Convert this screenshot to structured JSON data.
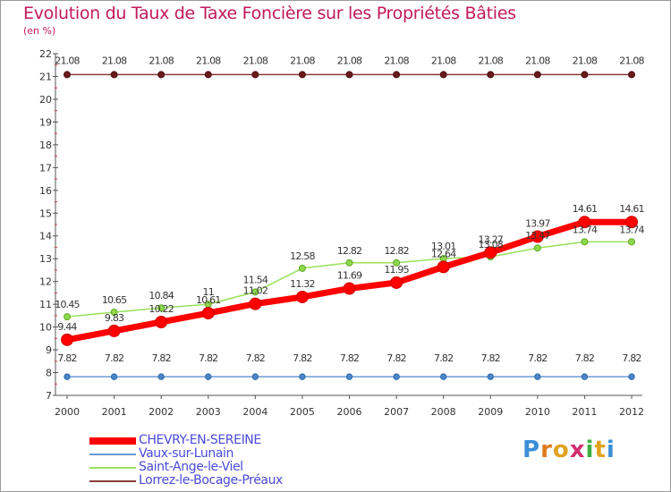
{
  "title": "Evolution du Taux de Taxe Foncière sur les Propriétés Bâties",
  "subtitle": "(en %)",
  "logo_text": "Proxiti",
  "chart_data": {
    "type": "line",
    "title": "Evolution du Taux de Taxe Foncière sur les Propriétés Bâties",
    "ylabel": "(en %)",
    "xlabel": "",
    "ylim": [
      7,
      22
    ],
    "yticks": [
      7,
      8,
      9,
      10,
      11,
      12,
      13,
      14,
      15,
      16,
      17,
      18,
      19,
      20,
      21,
      22
    ],
    "grid": false,
    "legend_position": "bottom-left",
    "categories": [
      "2000",
      "2001",
      "2002",
      "2003",
      "2004",
      "2005",
      "2006",
      "2007",
      "2008",
      "2009",
      "2010",
      "2011",
      "2012"
    ],
    "series": [
      {
        "name": "CHEVRY-EN-SEREINE",
        "color": "#ff0000",
        "values": [
          9.44,
          9.83,
          10.22,
          10.61,
          11.02,
          11.32,
          11.69,
          11.95,
          12.64,
          13.27,
          13.97,
          14.61,
          14.61
        ],
        "labels": [
          "9.44",
          "9.83",
          "10.22",
          "10.61",
          "11.02",
          "11.32",
          "11.69",
          "11.95",
          "12.64",
          "13.27",
          "13.97",
          "14.61",
          "14.61"
        ]
      },
      {
        "name": "Vaux-sur-Lunain",
        "color": "#6b9bd2",
        "values": [
          7.82,
          7.82,
          7.82,
          7.82,
          7.82,
          7.82,
          7.82,
          7.82,
          7.82,
          7.82,
          7.82,
          7.82,
          7.82
        ],
        "labels": [
          "7.82",
          "7.82",
          "7.82",
          "7.82",
          "7.82",
          "7.82",
          "7.82",
          "7.82",
          "7.82",
          "7.82",
          "7.82",
          "7.82",
          "7.82"
        ]
      },
      {
        "name": "Saint-Ange-le-Viel",
        "color": "#99e05a",
        "values": [
          10.45,
          10.65,
          10.84,
          11,
          11.54,
          12.58,
          12.82,
          12.82,
          13.01,
          13.08,
          13.47,
          13.74,
          13.74
        ],
        "labels": [
          "10.45",
          "10.65",
          "10.84",
          "11",
          "11.54",
          "12.58",
          "12.82",
          "12.82",
          "13.01",
          "13.08",
          "13.47",
          "13.74",
          "13.74"
        ]
      },
      {
        "name": "Lorrez-le-Bocage-Préaux",
        "color": "#8b3a3a",
        "values": [
          21.08,
          21.08,
          21.08,
          21.08,
          21.08,
          21.08,
          21.08,
          21.08,
          21.08,
          21.08,
          21.08,
          21.08,
          21.08
        ],
        "labels": [
          "21.08",
          "21.08",
          "21.08",
          "21.08",
          "21.08",
          "21.08",
          "21.08",
          "21.08",
          "21.08",
          "21.08",
          "21.08",
          "21.08",
          "21.08"
        ]
      }
    ]
  }
}
